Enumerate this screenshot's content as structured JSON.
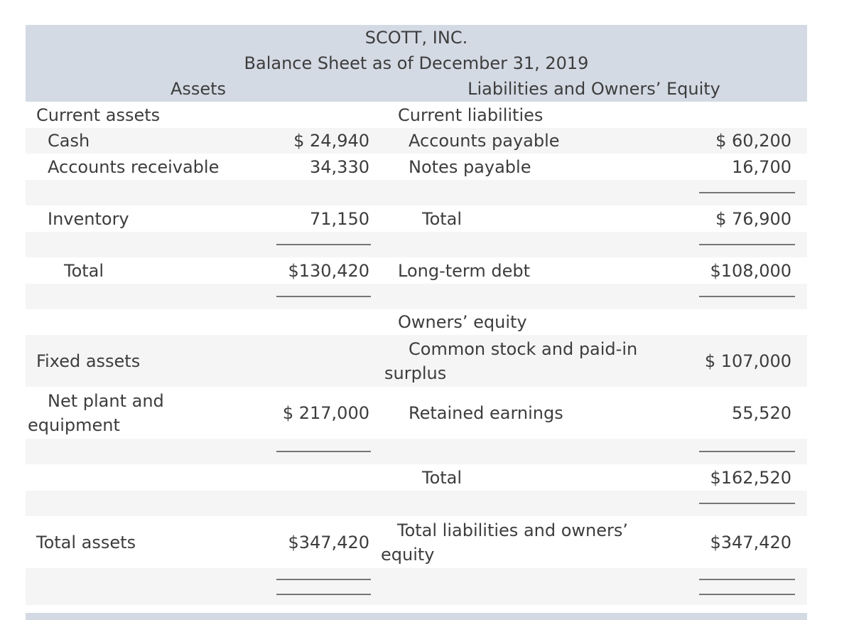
{
  "header": {
    "company": "SCOTT, INC.",
    "subtitle": "Balance Sheet as of December 31, 2019",
    "assets_title": "Assets",
    "liabilities_title": "Liabilities and Owners’ Equity"
  },
  "assets": {
    "current_header": "Current assets",
    "cash_label": "Cash",
    "cash_value": "$ 24,940",
    "accounts_receivable_label": "Accounts receivable",
    "accounts_receivable_value": "34,330",
    "inventory_label": "Inventory",
    "inventory_value": "71,150",
    "current_total_label": "Total",
    "current_total_value": "$130,420",
    "fixed_header": "Fixed assets",
    "net_plant_label": "Net plant and\nequipment",
    "net_plant_value": "$ 217,000",
    "total_label": "Total assets",
    "total_value": "$347,420"
  },
  "liabilities_equity": {
    "current_header": "Current liabilities",
    "accounts_payable_label": "Accounts payable",
    "accounts_payable_value": "$ 60,200",
    "notes_payable_label": "Notes payable",
    "notes_payable_value": "16,700",
    "current_total_label": "Total",
    "current_total_value": "$ 76,900",
    "long_term_debt_label": "Long-term debt",
    "long_term_debt_value": "$108,000",
    "owners_equity_header": "Owners’ equity",
    "common_stock_label": "Common stock and paid-in\nsurplus",
    "common_stock_value": "$ 107,000",
    "retained_earnings_label": "Retained earnings",
    "retained_earnings_value": "55,520",
    "equity_total_label": "Total",
    "equity_total_value": "$162,520",
    "total_label": "Total liabilities and owners’\nequity",
    "total_value": "$347,420"
  },
  "colors": {
    "header_band": "#d4dae4",
    "row_stripe": "#f5f5f6",
    "text": "#3d3d3d",
    "rule": "#767676"
  }
}
